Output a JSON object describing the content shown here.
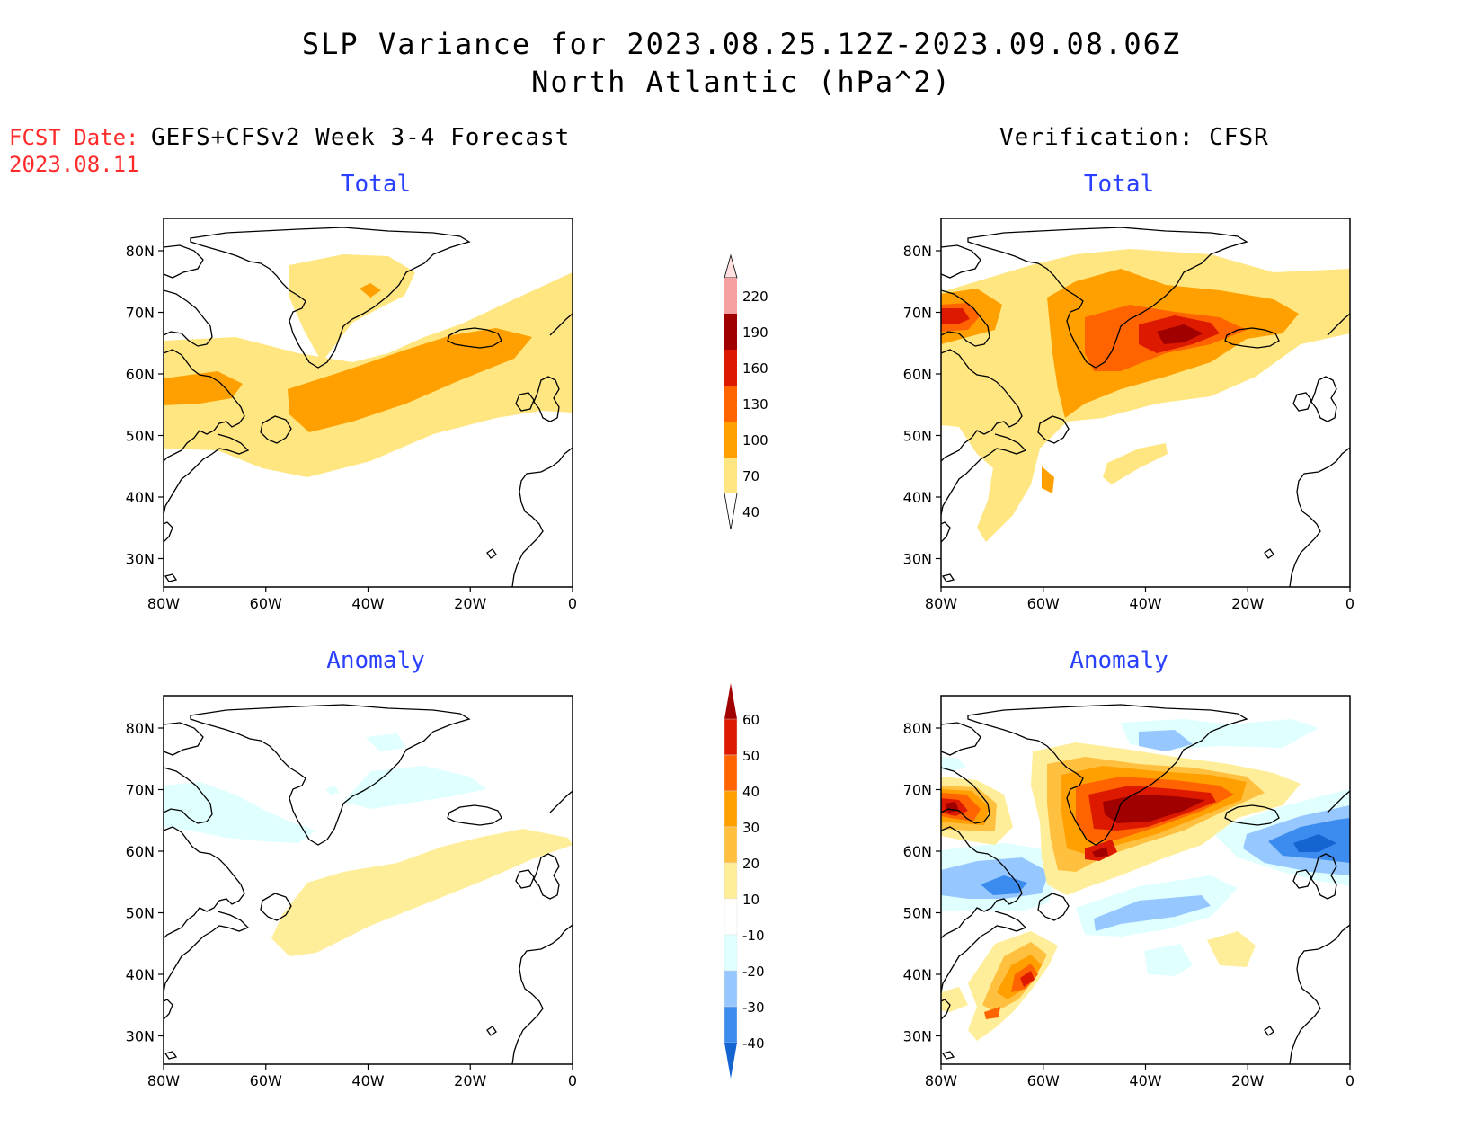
{
  "title": {
    "line1": "SLP Variance for 2023.08.25.12Z-2023.09.08.06Z",
    "line2": "North Atlantic (hPa^2)"
  },
  "fcst": {
    "label": "FCST Date:",
    "date": "2023.08.11"
  },
  "left_header": "GEFS+CFSv2 Week 3-4 Forecast",
  "right_header": "Verification: CFSR",
  "panels": {
    "top_left": {
      "subtitle": "Total"
    },
    "top_right": {
      "subtitle": "Total"
    },
    "bottom_left": {
      "subtitle": "Anomaly"
    },
    "bottom_right": {
      "subtitle": "Anomaly"
    }
  },
  "lat_labels": [
    "80N",
    "70N",
    "60N",
    "50N",
    "40N",
    "30N"
  ],
  "lon_labels": [
    "80W",
    "60W",
    "40W",
    "20W",
    "0"
  ],
  "colorbar_total": {
    "levels": [
      "220",
      "190",
      "160",
      "130",
      "100",
      "70",
      "40"
    ],
    "colors": [
      "#ffe0e0",
      "#f4a0a0",
      "#a00000",
      "#dd1a00",
      "#ff6400",
      "#ffa000",
      "#ffe680"
    ]
  },
  "colorbar_anomaly": {
    "levels": [
      "60",
      "50",
      "40",
      "30",
      "20",
      "10",
      "-10",
      "-20",
      "-30",
      "-40"
    ],
    "colors": [
      "#a00000",
      "#dd1a00",
      "#ff6400",
      "#ffa000",
      "#ffc040",
      "#ffee99",
      "#ffffff",
      "#e0ffff",
      "#96c8ff",
      "#3c8cf0",
      "#1464d2"
    ]
  }
}
